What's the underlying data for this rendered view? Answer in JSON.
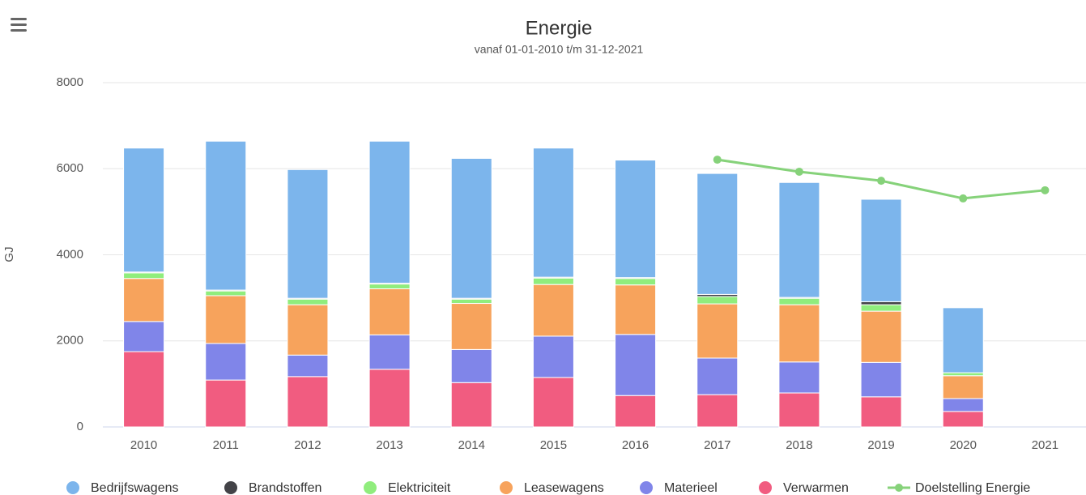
{
  "chart_data": {
    "type": "stacked_bar_line",
    "title": "Energie",
    "subtitle": "vanaf 01-01-2010 t/m 31-12-2021",
    "y_label": "GJ",
    "categories": [
      "2010",
      "2011",
      "2012",
      "2013",
      "2014",
      "2015",
      "2016",
      "2017",
      "2018",
      "2019",
      "2020",
      "2021"
    ],
    "ylim": [
      0,
      8000
    ],
    "yticks": [
      0,
      2000,
      4000,
      6000,
      8000
    ],
    "grid": true,
    "series": [
      {
        "name": "Bedrijfswagens",
        "color": "#7cb5ec",
        "values": [
          2880,
          3460,
          2990,
          3300,
          3250,
          3000,
          2730,
          2810,
          2670,
          2380,
          1510,
          null
        ]
      },
      {
        "name": "Brandstoffen",
        "color": "#434348",
        "values": [
          20,
          20,
          20,
          20,
          20,
          20,
          20,
          50,
          20,
          70,
          0,
          null
        ]
      },
      {
        "name": "Elektriciteit",
        "color": "#90ed7d",
        "values": [
          130,
          110,
          130,
          110,
          100,
          150,
          150,
          170,
          150,
          150,
          70,
          null
        ]
      },
      {
        "name": "Leasewagens",
        "color": "#f7a35c",
        "values": [
          1000,
          1110,
          1170,
          1070,
          1070,
          1200,
          1150,
          1260,
          1330,
          1190,
          530,
          null
        ]
      },
      {
        "name": "Materieel",
        "color": "#8085e9",
        "values": [
          700,
          850,
          500,
          800,
          770,
          960,
          1420,
          850,
          720,
          800,
          300,
          null
        ]
      },
      {
        "name": "Verwarmen",
        "color": "#f15c80",
        "values": [
          1750,
          1090,
          1170,
          1340,
          1030,
          1150,
          730,
          750,
          790,
          700,
          360,
          null
        ]
      }
    ],
    "line": {
      "name": "Doelstelling Energie",
      "color": "#86d27a",
      "values": [
        null,
        null,
        null,
        null,
        null,
        null,
        null,
        6210,
        5930,
        5720,
        5310,
        5500
      ]
    }
  }
}
